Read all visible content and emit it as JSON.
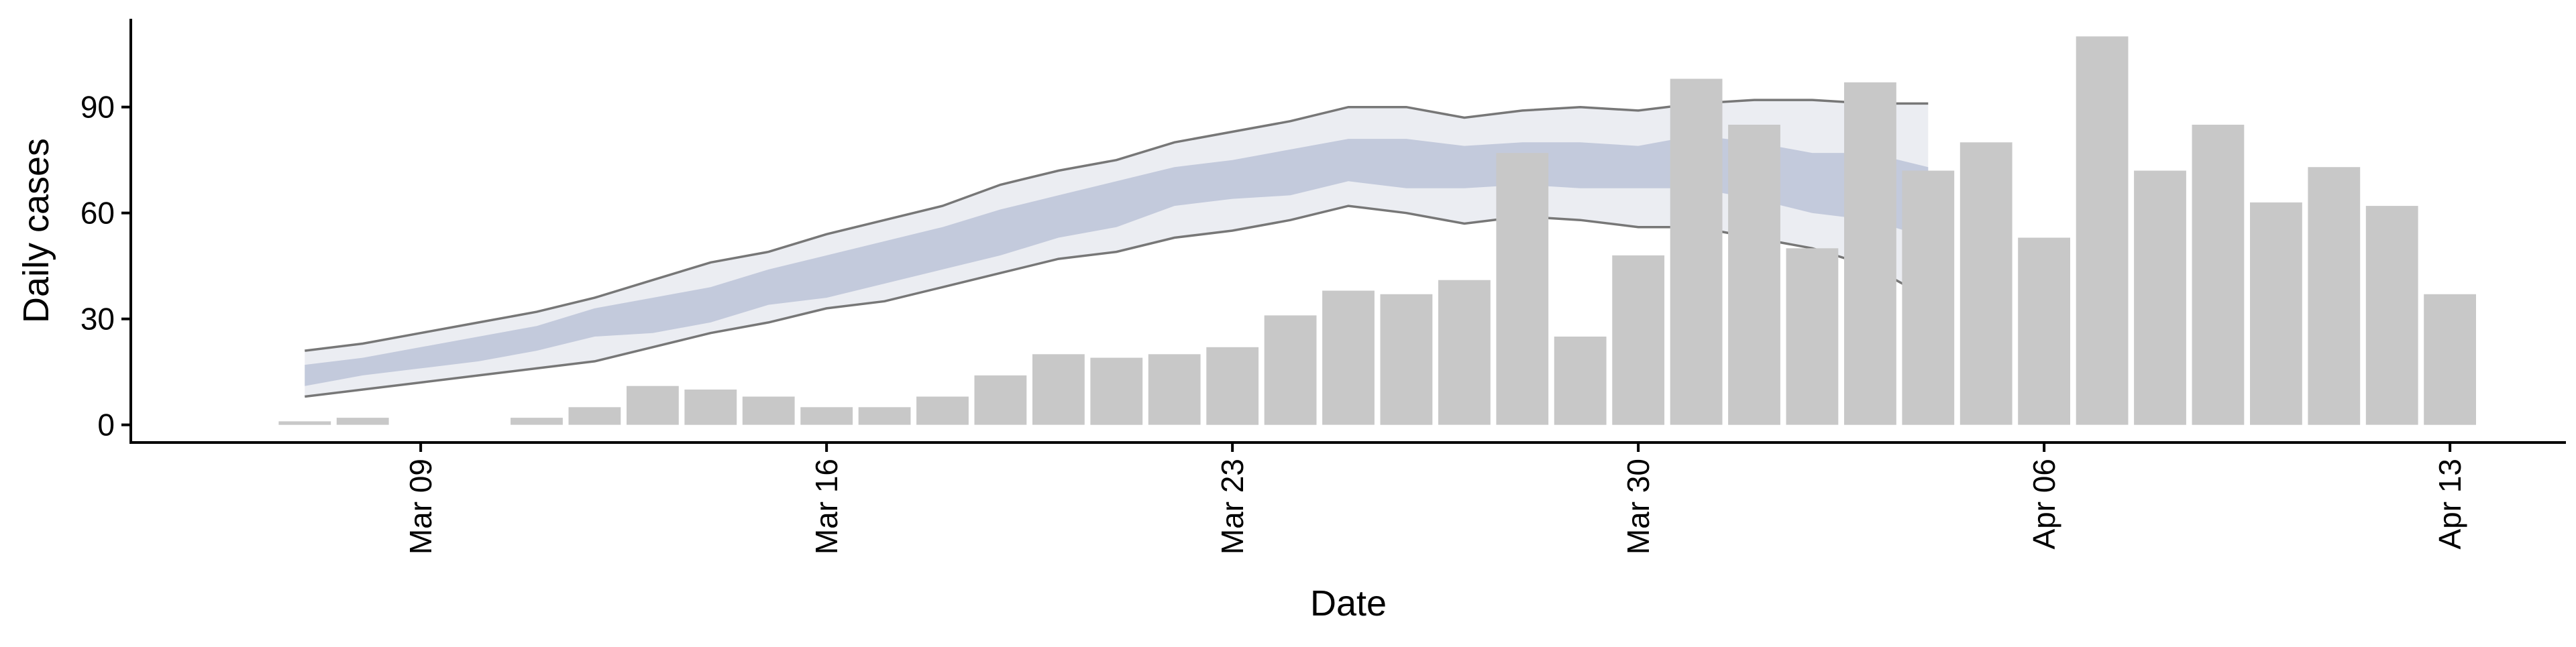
{
  "chart_data": {
    "type": "bar",
    "xlabel": "Date",
    "ylabel": "Daily cases",
    "x_tick_labels": [
      {
        "date": "2020-03-09",
        "label": "Mar 09"
      },
      {
        "date": "2020-03-16",
        "label": "Mar 16"
      },
      {
        "date": "2020-03-23",
        "label": "Mar 23"
      },
      {
        "date": "2020-03-30",
        "label": "Mar 30"
      },
      {
        "date": "2020-04-06",
        "label": "Apr 06"
      },
      {
        "date": "2020-04-13",
        "label": "Apr 13"
      }
    ],
    "y_ticks": [
      0,
      30,
      60,
      90
    ],
    "xlim": [
      "2020-03-04",
      "2020-04-15"
    ],
    "ylim": [
      -5,
      115
    ],
    "grid": false,
    "series": [
      {
        "type": "bar",
        "x": [
          "2020-03-07",
          "2020-03-08",
          "2020-03-09",
          "2020-03-10",
          "2020-03-11",
          "2020-03-12",
          "2020-03-13",
          "2020-03-14",
          "2020-03-15",
          "2020-03-16",
          "2020-03-17",
          "2020-03-18",
          "2020-03-19",
          "2020-03-20",
          "2020-03-21",
          "2020-03-22",
          "2020-03-23",
          "2020-03-24",
          "2020-03-25",
          "2020-03-26",
          "2020-03-27",
          "2020-03-28",
          "2020-03-29",
          "2020-03-30",
          "2020-03-31",
          "2020-04-01",
          "2020-04-02",
          "2020-04-03",
          "2020-04-04",
          "2020-04-05",
          "2020-04-06",
          "2020-04-07",
          "2020-04-08",
          "2020-04-09",
          "2020-04-10",
          "2020-04-11",
          "2020-04-12",
          "2020-04-13"
        ],
        "values": [
          1,
          2,
          0,
          0,
          2,
          5,
          11,
          10,
          8,
          5,
          5,
          8,
          14,
          20,
          19,
          20,
          22,
          31,
          38,
          37,
          41,
          77,
          25,
          48,
          98,
          85,
          50,
          97,
          72,
          80,
          53,
          110,
          72,
          85,
          63,
          73,
          62,
          37
        ],
        "color": "#c8c8c8"
      },
      {
        "type": "band",
        "x": [
          "2020-03-07",
          "2020-03-08",
          "2020-03-09",
          "2020-03-10",
          "2020-03-11",
          "2020-03-12",
          "2020-03-13",
          "2020-03-14",
          "2020-03-15",
          "2020-03-16",
          "2020-03-17",
          "2020-03-18",
          "2020-03-19",
          "2020-03-20",
          "2020-03-21",
          "2020-03-22",
          "2020-03-23",
          "2020-03-24",
          "2020-03-25",
          "2020-03-26",
          "2020-03-27",
          "2020-03-28",
          "2020-03-29",
          "2020-03-30",
          "2020-03-31",
          "2020-04-01",
          "2020-04-02",
          "2020-04-03",
          "2020-04-04"
        ],
        "lower": [
          8,
          10,
          12,
          14,
          16,
          18,
          22,
          26,
          29,
          33,
          35,
          39,
          43,
          47,
          49,
          53,
          55,
          58,
          62,
          60,
          57,
          59,
          58,
          56,
          56,
          53,
          50,
          45,
          36
        ],
        "upper": [
          21,
          23,
          26,
          29,
          32,
          36,
          41,
          46,
          49,
          54,
          58,
          62,
          68,
          72,
          75,
          80,
          83,
          86,
          90,
          90,
          87,
          89,
          90,
          89,
          91,
          92,
          92,
          91,
          91
        ],
        "fill": "#e7eaf0",
        "line_color": "#777777"
      },
      {
        "type": "band",
        "x": [
          "2020-03-07",
          "2020-03-08",
          "2020-03-09",
          "2020-03-10",
          "2020-03-11",
          "2020-03-12",
          "2020-03-13",
          "2020-03-14",
          "2020-03-15",
          "2020-03-16",
          "2020-03-17",
          "2020-03-18",
          "2020-03-19",
          "2020-03-20",
          "2020-03-21",
          "2020-03-22",
          "2020-03-23",
          "2020-03-24",
          "2020-03-25",
          "2020-03-26",
          "2020-03-27",
          "2020-03-28",
          "2020-03-29",
          "2020-03-30",
          "2020-03-31",
          "2020-04-01",
          "2020-04-02",
          "2020-04-03",
          "2020-04-04"
        ],
        "lower": [
          11,
          14,
          16,
          18,
          21,
          25,
          26,
          29,
          34,
          36,
          40,
          44,
          48,
          53,
          56,
          62,
          64,
          65,
          69,
          67,
          67,
          68,
          67,
          67,
          67,
          64,
          60,
          58,
          53
        ],
        "upper": [
          17,
          19,
          22,
          25,
          28,
          33,
          36,
          39,
          44,
          48,
          52,
          56,
          61,
          65,
          69,
          73,
          75,
          78,
          81,
          81,
          79,
          80,
          80,
          79,
          82,
          80,
          77,
          77,
          73
        ],
        "fill": "#bcc3d8"
      }
    ],
    "colors": {
      "axis": "#000000",
      "bars": "#c8c8c8",
      "outer_band": "#e7eaf0",
      "inner_band": "#bcc3d8",
      "band_edges": "#777777"
    }
  }
}
